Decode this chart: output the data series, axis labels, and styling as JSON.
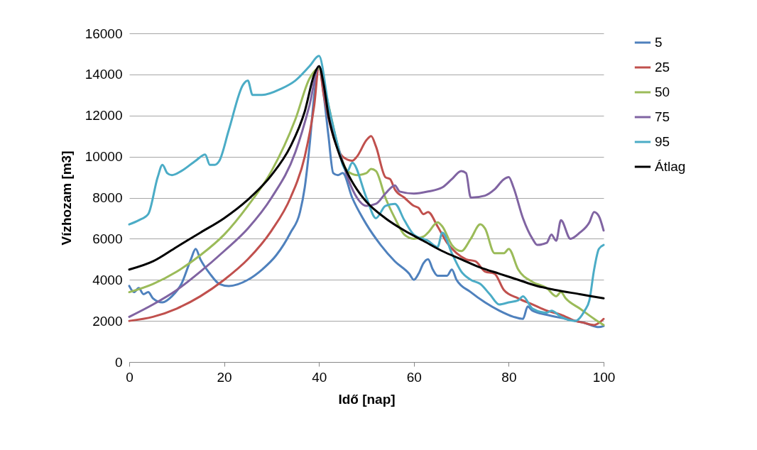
{
  "chart_data": {
    "type": "line",
    "xlabel": "Idő [nap]",
    "ylabel": "Vízhozam [m3]",
    "xlim": [
      0,
      100
    ],
    "xticks": [
      0,
      20,
      40,
      60,
      80,
      100
    ],
    "ylim": [
      0,
      16000
    ],
    "yticks": [
      0,
      2000,
      4000,
      6000,
      8000,
      10000,
      12000,
      14000,
      16000
    ],
    "grid": "y",
    "legend": "right",
    "line_style": "solid",
    "marker": "none",
    "series": [
      {
        "name": "5",
        "color": "#4f81bd",
        "x": [
          0,
          1,
          2,
          3,
          4,
          5,
          7,
          9,
          11,
          13,
          14,
          15,
          17,
          19,
          21,
          25,
          28,
          31,
          34,
          36,
          37,
          38,
          39,
          40,
          41,
          42,
          43,
          44,
          45,
          47,
          50,
          53,
          56,
          59,
          60,
          61,
          62,
          63,
          64,
          65,
          67,
          68,
          69,
          72,
          75,
          78,
          81,
          83,
          84,
          85,
          88,
          92,
          96,
          99,
          100
        ],
        "values": [
          3700,
          3400,
          3600,
          3300,
          3400,
          3100,
          2900,
          3200,
          3800,
          5000,
          5500,
          5000,
          4300,
          3800,
          3700,
          4000,
          4500,
          5200,
          6300,
          7300,
          8500,
          10500,
          13000,
          14400,
          13000,
          11000,
          9200,
          9100,
          9200,
          8000,
          6700,
          5700,
          4900,
          4300,
          4000,
          4300,
          4800,
          5000,
          4500,
          4200,
          4200,
          4500,
          4000,
          3400,
          2900,
          2500,
          2200,
          2100,
          2700,
          2500,
          2300,
          2100,
          1900,
          1700,
          1750
        ]
      },
      {
        "name": "25",
        "color": "#c0504d",
        "x": [
          0,
          5,
          10,
          15,
          20,
          25,
          30,
          34,
          37,
          39,
          40,
          41,
          43,
          45,
          47,
          48,
          50,
          51,
          52,
          54,
          55,
          56,
          58,
          60,
          61,
          62,
          63,
          65,
          67,
          69,
          71,
          73,
          75,
          77,
          79,
          82,
          85,
          88,
          91,
          94,
          96,
          98,
          99,
          100
        ],
        "values": [
          2000,
          2200,
          2600,
          3200,
          4000,
          5000,
          6400,
          8000,
          10000,
          12500,
          14400,
          13000,
          11000,
          10000,
          9800,
          10000,
          10800,
          11000,
          10500,
          9000,
          8900,
          8400,
          8000,
          7600,
          7500,
          7200,
          7300,
          6600,
          5800,
          5300,
          5000,
          4900,
          4400,
          4300,
          3500,
          3100,
          2800,
          2500,
          2300,
          2000,
          1900,
          1800,
          1900,
          2100
        ]
      },
      {
        "name": "50",
        "color": "#9bbb59",
        "x": [
          0,
          5,
          10,
          15,
          20,
          25,
          30,
          35,
          38,
          40,
          42,
          44,
          46,
          48,
          50,
          51,
          52,
          54,
          56,
          58,
          60,
          62,
          63,
          65,
          66,
          68,
          70,
          72,
          74,
          75,
          77,
          79,
          80,
          82,
          85,
          88,
          90,
          91,
          92,
          95,
          98,
          100
        ],
        "values": [
          3400,
          3800,
          4400,
          5200,
          6200,
          7600,
          9300,
          11800,
          13800,
          14300,
          12500,
          10500,
          9300,
          9100,
          9200,
          9400,
          9300,
          8000,
          7000,
          6200,
          6000,
          6100,
          6300,
          6800,
          6600,
          5700,
          5400,
          6000,
          6700,
          6500,
          5300,
          5300,
          5500,
          4500,
          3900,
          3600,
          3200,
          3400,
          3100,
          2600,
          2100,
          1800
        ]
      },
      {
        "name": "75",
        "color": "#8064a2",
        "x": [
          0,
          5,
          10,
          15,
          20,
          25,
          30,
          35,
          38,
          40,
          42,
          44,
          46,
          48,
          50,
          52,
          54,
          56,
          57,
          60,
          63,
          66,
          68,
          70,
          71,
          72,
          75,
          77,
          79,
          80,
          81,
          83,
          85,
          86,
          88,
          89,
          90,
          91,
          93,
          95,
          97,
          98,
          99,
          100
        ],
        "values": [
          2200,
          2800,
          3500,
          4400,
          5400,
          6500,
          8000,
          10200,
          12500,
          14400,
          12000,
          10500,
          9000,
          8000,
          7600,
          7700,
          8200,
          8600,
          8300,
          8200,
          8300,
          8500,
          8900,
          9300,
          9200,
          8000,
          8100,
          8400,
          8900,
          9000,
          8500,
          7000,
          6000,
          5700,
          5800,
          6200,
          5900,
          6900,
          6000,
          6300,
          6800,
          7300,
          7100,
          6400
        ]
      },
      {
        "name": "95",
        "color": "#4bacc6",
        "x": [
          0,
          2,
          4,
          6,
          7,
          8,
          9,
          11,
          14,
          16,
          17,
          18,
          19,
          21,
          24,
          25,
          26,
          28,
          32,
          35,
          38,
          40,
          42,
          44,
          45,
          46,
          47,
          50,
          52,
          54,
          56,
          58,
          60,
          63,
          65,
          66,
          68,
          70,
          72,
          74,
          76,
          78,
          80,
          82,
          83,
          85,
          88,
          89,
          91,
          94,
          96,
          97,
          98,
          99,
          100
        ],
        "values": [
          6700,
          6900,
          7200,
          9000,
          9600,
          9200,
          9100,
          9300,
          9800,
          10100,
          9600,
          9600,
          9800,
          11300,
          13500,
          13700,
          13000,
          13000,
          13300,
          13700,
          14400,
          14900,
          12500,
          10500,
          9600,
          9300,
          9700,
          8000,
          7000,
          7600,
          7700,
          6900,
          6200,
          5900,
          5600,
          6300,
          5300,
          4400,
          4000,
          3800,
          3300,
          2800,
          2900,
          3000,
          3200,
          2600,
          2400,
          2500,
          2200,
          2000,
          2500,
          3000,
          4500,
          5500,
          5700
        ]
      },
      {
        "name": "Átlag",
        "color": "#000000",
        "x": [
          0,
          5,
          10,
          15,
          20,
          25,
          30,
          34,
          37,
          39,
          40,
          41,
          42,
          44,
          46,
          48,
          50,
          54,
          58,
          62,
          66,
          70,
          74,
          78,
          82,
          86,
          90,
          95,
          100
        ],
        "values": [
          4500,
          4900,
          5600,
          6300,
          7000,
          7900,
          9100,
          10500,
          12200,
          14000,
          14400,
          13500,
          12000,
          10300,
          9200,
          8400,
          7800,
          7000,
          6400,
          5900,
          5400,
          5000,
          4600,
          4300,
          4000,
          3700,
          3500,
          3300,
          3100
        ]
      }
    ]
  }
}
